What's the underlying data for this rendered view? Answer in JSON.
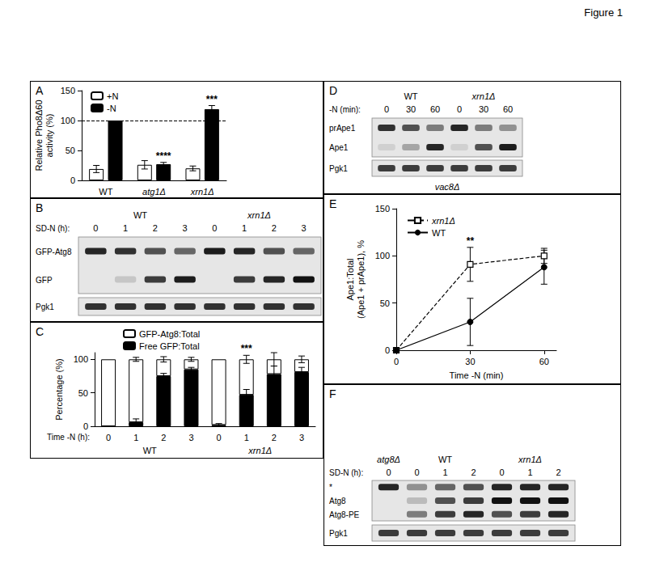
{
  "figure_title": "Figure 1",
  "chart_data": [
    {
      "panel": "A",
      "type": "bar",
      "categories": [
        "WT",
        "atg1Δ",
        "xrn1Δ"
      ],
      "y_label": "Relative Pho8Δ60\nactivity (%)",
      "ylim": [
        0,
        150
      ],
      "yticks": [
        0,
        50,
        100,
        150
      ],
      "grid": false,
      "legend": "upper left",
      "reference_line": 100,
      "series": [
        {
          "name": "+N",
          "color": "#ffffff",
          "values": [
            19,
            26,
            20
          ],
          "errors": [
            6,
            7,
            4
          ]
        },
        {
          "name": "-N",
          "color": "#000000",
          "values": [
            100,
            27,
            119
          ],
          "errors": [
            0,
            3,
            6
          ]
        }
      ],
      "annotations": [
        {
          "text": "****",
          "category": "atg1Δ",
          "series": "-N"
        },
        {
          "text": "***",
          "category": "xrn1Δ",
          "series": "-N"
        }
      ]
    },
    {
      "panel": "C",
      "type": "bar",
      "stacked": true,
      "categories": [
        "0",
        "1",
        "2",
        "3",
        "0",
        "1",
        "2",
        "3"
      ],
      "groups": [
        "WT",
        "xrn1Δ"
      ],
      "x_label": "Time -N (h):",
      "y_label": "Percentage (%)",
      "ylim": [
        0,
        110
      ],
      "yticks": [
        0,
        50,
        100
      ],
      "grid": false,
      "legend": "upper left",
      "series": [
        {
          "name": "GFP-Atg8:Total",
          "color": "#ffffff",
          "values": [
            100,
            94,
            25,
            15,
            98,
            53,
            22,
            19
          ],
          "errors": [
            0,
            3,
            4,
            3,
            0,
            6,
            10,
            5
          ]
        },
        {
          "name": "Free GFP:Total",
          "color": "#000000",
          "values": [
            0,
            6,
            75,
            85,
            2,
            47,
            78,
            81
          ],
          "errors": [
            0,
            5,
            4,
            3,
            2,
            8,
            12,
            7
          ]
        }
      ],
      "annotations": [
        {
          "text": "***",
          "category_index": 5
        }
      ]
    },
    {
      "panel": "E",
      "type": "line",
      "x": [
        0,
        30,
        60
      ],
      "x_label": "Time -N (min)",
      "y_label": "Ape1:Total\n(Ape1 + prApe1), %",
      "xlim": [
        0,
        65
      ],
      "xticks": [
        0,
        30,
        60
      ],
      "ylim": [
        0,
        150
      ],
      "yticks": [
        0,
        50,
        100,
        150
      ],
      "grid": false,
      "legend": "upper left",
      "series": [
        {
          "name": "xrn1Δ",
          "color": "#000000",
          "marker": "square-open",
          "line_style": "dashed",
          "values": [
            0,
            91,
            100
          ],
          "errors": [
            0,
            18,
            8
          ]
        },
        {
          "name": "WT",
          "color": "#000000",
          "marker": "circle",
          "line_style": "solid",
          "values": [
            0,
            30,
            88
          ],
          "errors": [
            0,
            25,
            18
          ]
        }
      ],
      "annotations": [
        {
          "text": "**",
          "x": 30
        }
      ]
    }
  ],
  "blots": [
    {
      "panel": "B",
      "x_label": "SD-N (h):",
      "groups": [
        {
          "name": "WT",
          "lanes": [
            "0",
            "1",
            "2",
            "3"
          ]
        },
        {
          "name": "xrn1Δ",
          "lanes": [
            "0",
            "1",
            "2",
            "3"
          ]
        }
      ],
      "bands": [
        {
          "label": "GFP-Atg8",
          "intensity": [
            0.9,
            0.85,
            0.7,
            0.6,
            0.95,
            0.9,
            0.7,
            0.6
          ]
        },
        {
          "label": "GFP",
          "intensity": [
            0,
            0.15,
            0.8,
            0.95,
            0,
            0.8,
            0.9,
            1
          ]
        }
      ],
      "loading": {
        "label": "Pgk1",
        "intensity": [
          0.85,
          0.85,
          0.85,
          0.85,
          0.85,
          0.85,
          0.85,
          0.85
        ]
      }
    },
    {
      "panel": "D",
      "x_label": "-N (min):",
      "groups": [
        {
          "name": "WT",
          "lanes": [
            "0",
            "30",
            "60"
          ]
        },
        {
          "name": "xrn1Δ",
          "lanes": [
            "0",
            "30",
            "60"
          ]
        }
      ],
      "bands": [
        {
          "label": "prApe1",
          "intensity": [
            0.85,
            0.7,
            0.5,
            0.9,
            0.5,
            0.4
          ]
        },
        {
          "label": "Ape1",
          "intensity": [
            0.1,
            0.3,
            0.9,
            0.1,
            0.7,
            0.95
          ]
        }
      ],
      "loading": {
        "label": "Pgk1",
        "intensity": [
          0.8,
          0.8,
          0.8,
          0.8,
          0.8,
          0.8
        ]
      },
      "strain": "vac8Δ"
    },
    {
      "panel": "F",
      "x_label": "SD-N (h):",
      "groups": [
        {
          "name": "atg8Δ",
          "lanes": [
            "0"
          ]
        },
        {
          "name": "WT",
          "lanes": [
            "0",
            "1",
            "2"
          ]
        },
        {
          "name": "xrn1Δ",
          "lanes": [
            "0",
            "1",
            "2"
          ]
        }
      ],
      "bands": [
        {
          "label": "*",
          "intensity": [
            0.9,
            0.4,
            0.6,
            0.7,
            0.9,
            0.9,
            0.9
          ]
        },
        {
          "label": "Atg8",
          "intensity": [
            0,
            0.2,
            0.7,
            0.8,
            1,
            1,
            1
          ]
        },
        {
          "label": "Atg8-PE",
          "intensity": [
            0,
            0.5,
            0.8,
            0.9,
            0.7,
            0.8,
            0.9
          ]
        }
      ],
      "loading": {
        "label": "Pgk1",
        "intensity": [
          0.8,
          0.8,
          0.8,
          0.8,
          0.8,
          0.8,
          0.8
        ]
      }
    }
  ]
}
